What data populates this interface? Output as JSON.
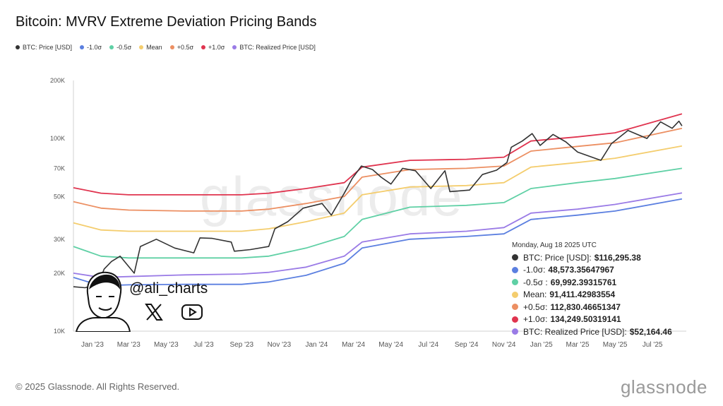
{
  "header": {
    "title": "Bitcoin: MVRV Extreme Deviation Pricing Bands"
  },
  "legend": [
    {
      "label": "BTC: Price [USD]",
      "color": "#333333"
    },
    {
      "label": "-1.0σ",
      "color": "#5b7fe0"
    },
    {
      "label": "-0.5σ",
      "color": "#5fd0a5"
    },
    {
      "label": "Mean",
      "color": "#f4cd6e"
    },
    {
      "label": "+0.5σ",
      "color": "#ec8f62"
    },
    {
      "label": "+1.0σ",
      "color": "#e0344f"
    },
    {
      "label": "BTC: Realized Price [USD]",
      "color": "#9a7be6"
    }
  ],
  "tooltip": {
    "date": "Monday, Aug 18 2025 UTC",
    "rows": [
      {
        "label": "BTC: Price [USD]:",
        "value": "$116,295.38",
        "color": "#333333"
      },
      {
        "label": "-1.0σ:",
        "value": "48,573.35647967",
        "color": "#5b7fe0"
      },
      {
        "label": "-0.5σ :",
        "value": "69,992.39315761",
        "color": "#5fd0a5"
      },
      {
        "label": "Mean:",
        "value": "91,411.42983554",
        "color": "#f4cd6e"
      },
      {
        "label": "+0.5σ:",
        "value": "112,830.46651347",
        "color": "#ec8f62"
      },
      {
        "label": "+1.0σ:",
        "value": "134,249.50319141",
        "color": "#e0344f"
      },
      {
        "label": "BTC: Realized Price [USD]:",
        "value": "$52,164.46",
        "color": "#9a7be6"
      }
    ]
  },
  "watermark": {
    "handle": "@ali_charts",
    "background_text": "glassnode"
  },
  "footer": {
    "copyright": "© 2025 Glassnode. All Rights Reserved.",
    "brand": "glassnode"
  },
  "chart_data": {
    "type": "line",
    "title": "Bitcoin: MVRV Extreme Deviation Pricing Bands",
    "y_scale": "log",
    "ylim": [
      10000,
      200000
    ],
    "xlim": [
      "2022-12-01",
      "2025-08-25"
    ],
    "y_ticks": [
      {
        "value": 10000,
        "label": "10K"
      },
      {
        "value": 20000,
        "label": "20K"
      },
      {
        "value": 30000,
        "label": "30K"
      },
      {
        "value": 50000,
        "label": "50K"
      },
      {
        "value": 70000,
        "label": "70K"
      },
      {
        "value": 100000,
        "label": "100K"
      },
      {
        "value": 200000,
        "label": "200K"
      }
    ],
    "x_ticks": [
      {
        "date": "2023-01-01",
        "label": "Jan '23"
      },
      {
        "date": "2023-03-01",
        "label": "Mar '23"
      },
      {
        "date": "2023-05-01",
        "label": "May '23"
      },
      {
        "date": "2023-07-01",
        "label": "Jul '23"
      },
      {
        "date": "2023-09-01",
        "label": "Sep '23"
      },
      {
        "date": "2023-11-01",
        "label": "Nov '23"
      },
      {
        "date": "2024-01-01",
        "label": "Jan '24"
      },
      {
        "date": "2024-03-01",
        "label": "Mar '24"
      },
      {
        "date": "2024-05-01",
        "label": "May '24"
      },
      {
        "date": "2024-07-01",
        "label": "Jul '24"
      },
      {
        "date": "2024-09-01",
        "label": "Sep '24"
      },
      {
        "date": "2024-11-01",
        "label": "Nov '24"
      },
      {
        "date": "2025-01-01",
        "label": "Jan '25"
      },
      {
        "date": "2025-03-01",
        "label": "Mar '25"
      },
      {
        "date": "2025-05-01",
        "label": "May '25"
      },
      {
        "date": "2025-07-01",
        "label": "Jul '25"
      }
    ],
    "grid": false,
    "series": [
      {
        "name": "+1.0σ",
        "color": "#e0344f",
        "points": [
          [
            "2022-12-01",
            55500
          ],
          [
            "2023-01-15",
            52000
          ],
          [
            "2023-03-01",
            51000
          ],
          [
            "2023-06-01",
            51000
          ],
          [
            "2023-09-01",
            51000
          ],
          [
            "2023-10-15",
            52000
          ],
          [
            "2023-12-15",
            55000
          ],
          [
            "2024-02-15",
            59000
          ],
          [
            "2024-03-15",
            71000
          ],
          [
            "2024-06-01",
            77000
          ],
          [
            "2024-09-01",
            78000
          ],
          [
            "2024-11-01",
            80000
          ],
          [
            "2024-12-15",
            97000
          ],
          [
            "2025-03-01",
            102000
          ],
          [
            "2025-05-01",
            107000
          ],
          [
            "2025-08-18",
            134249
          ]
        ]
      },
      {
        "name": "+0.5σ",
        "color": "#ec8f62",
        "points": [
          [
            "2022-12-01",
            47000
          ],
          [
            "2023-01-15",
            43500
          ],
          [
            "2023-03-01",
            42500
          ],
          [
            "2023-06-01",
            42000
          ],
          [
            "2023-09-01",
            42000
          ],
          [
            "2023-10-15",
            43000
          ],
          [
            "2023-12-15",
            46000
          ],
          [
            "2024-02-15",
            50000
          ],
          [
            "2024-03-15",
            63000
          ],
          [
            "2024-06-01",
            69000
          ],
          [
            "2024-09-01",
            70000
          ],
          [
            "2024-11-01",
            72000
          ],
          [
            "2024-12-15",
            86000
          ],
          [
            "2025-03-01",
            91000
          ],
          [
            "2025-05-01",
            95000
          ],
          [
            "2025-08-18",
            112830
          ]
        ]
      },
      {
        "name": "Mean",
        "color": "#f4cd6e",
        "points": [
          [
            "2022-12-01",
            36500
          ],
          [
            "2023-01-15",
            33500
          ],
          [
            "2023-03-01",
            33000
          ],
          [
            "2023-06-01",
            33000
          ],
          [
            "2023-09-01",
            33000
          ],
          [
            "2023-10-15",
            34000
          ],
          [
            "2023-12-15",
            37000
          ],
          [
            "2024-02-15",
            41000
          ],
          [
            "2024-03-15",
            51000
          ],
          [
            "2024-06-01",
            56000
          ],
          [
            "2024-09-01",
            57000
          ],
          [
            "2024-11-01",
            59000
          ],
          [
            "2024-12-15",
            71000
          ],
          [
            "2025-03-01",
            75000
          ],
          [
            "2025-05-01",
            79000
          ],
          [
            "2025-08-18",
            91411
          ]
        ]
      },
      {
        "name": "-0.5σ",
        "color": "#5fd0a5",
        "points": [
          [
            "2022-12-01",
            27500
          ],
          [
            "2023-01-15",
            24500
          ],
          [
            "2023-03-01",
            24000
          ],
          [
            "2023-06-01",
            24000
          ],
          [
            "2023-09-01",
            24000
          ],
          [
            "2023-10-15",
            24500
          ],
          [
            "2023-12-15",
            27000
          ],
          [
            "2024-02-15",
            31000
          ],
          [
            "2024-03-15",
            38000
          ],
          [
            "2024-06-01",
            44000
          ],
          [
            "2024-09-01",
            45000
          ],
          [
            "2024-11-01",
            46500
          ],
          [
            "2024-12-15",
            55000
          ],
          [
            "2025-03-01",
            59000
          ],
          [
            "2025-05-01",
            62000
          ],
          [
            "2025-08-18",
            69992
          ]
        ]
      },
      {
        "name": "BTC: Realized Price [USD]",
        "color": "#9a7be6",
        "points": [
          [
            "2022-12-01",
            20000
          ],
          [
            "2023-01-15",
            19000
          ],
          [
            "2023-03-01",
            19200
          ],
          [
            "2023-06-01",
            19600
          ],
          [
            "2023-09-01",
            19800
          ],
          [
            "2023-10-15",
            20200
          ],
          [
            "2023-12-15",
            21500
          ],
          [
            "2024-02-15",
            24500
          ],
          [
            "2024-03-15",
            29000
          ],
          [
            "2024-06-01",
            32000
          ],
          [
            "2024-09-01",
            33000
          ],
          [
            "2024-11-01",
            34500
          ],
          [
            "2024-12-15",
            41000
          ],
          [
            "2025-03-01",
            43000
          ],
          [
            "2025-05-01",
            45500
          ],
          [
            "2025-08-18",
            52164
          ]
        ]
      },
      {
        "name": "-1.0σ",
        "color": "#5b7fe0",
        "points": [
          [
            "2022-12-01",
            19000
          ],
          [
            "2023-01-15",
            17200
          ],
          [
            "2023-03-01",
            17400
          ],
          [
            "2023-06-01",
            17500
          ],
          [
            "2023-09-01",
            17500
          ],
          [
            "2023-10-15",
            18000
          ],
          [
            "2023-12-15",
            19500
          ],
          [
            "2024-02-15",
            22500
          ],
          [
            "2024-03-15",
            27000
          ],
          [
            "2024-06-01",
            30000
          ],
          [
            "2024-09-01",
            31000
          ],
          [
            "2024-11-01",
            32000
          ],
          [
            "2024-12-15",
            38000
          ],
          [
            "2025-03-01",
            40000
          ],
          [
            "2025-05-01",
            42000
          ],
          [
            "2025-08-18",
            48573
          ]
        ]
      },
      {
        "name": "BTC: Price [USD]",
        "color": "#333333",
        "points": [
          [
            "2022-12-01",
            17000
          ],
          [
            "2022-12-20",
            16800
          ],
          [
            "2023-01-10",
            17500
          ],
          [
            "2023-01-20",
            21000
          ],
          [
            "2023-02-01",
            23000
          ],
          [
            "2023-02-15",
            24500
          ],
          [
            "2023-03-10",
            20000
          ],
          [
            "2023-03-20",
            27500
          ],
          [
            "2023-04-15",
            30000
          ],
          [
            "2023-05-15",
            27000
          ],
          [
            "2023-06-15",
            25500
          ],
          [
            "2023-06-25",
            30500
          ],
          [
            "2023-07-15",
            30300
          ],
          [
            "2023-08-15",
            29000
          ],
          [
            "2023-08-20",
            26000
          ],
          [
            "2023-09-15",
            26500
          ],
          [
            "2023-10-15",
            27500
          ],
          [
            "2023-10-25",
            34000
          ],
          [
            "2023-11-15",
            37000
          ],
          [
            "2023-12-10",
            43500
          ],
          [
            "2024-01-10",
            46000
          ],
          [
            "2024-01-25",
            40000
          ],
          [
            "2024-02-15",
            52000
          ],
          [
            "2024-02-28",
            62000
          ],
          [
            "2024-03-14",
            72000
          ],
          [
            "2024-04-01",
            69000
          ],
          [
            "2024-04-15",
            63000
          ],
          [
            "2024-05-01",
            58000
          ],
          [
            "2024-05-20",
            70000
          ],
          [
            "2024-06-10",
            68000
          ],
          [
            "2024-07-05",
            55000
          ],
          [
            "2024-07-28",
            68000
          ],
          [
            "2024-08-05",
            53000
          ],
          [
            "2024-09-06",
            54000
          ],
          [
            "2024-09-27",
            65000
          ],
          [
            "2024-10-20",
            68500
          ],
          [
            "2024-11-06",
            75000
          ],
          [
            "2024-11-13",
            90000
          ],
          [
            "2024-12-01",
            97000
          ],
          [
            "2024-12-17",
            106000
          ],
          [
            "2024-12-30",
            92000
          ],
          [
            "2025-01-20",
            105000
          ],
          [
            "2025-02-10",
            96000
          ],
          [
            "2025-03-01",
            85000
          ],
          [
            "2025-04-08",
            77000
          ],
          [
            "2025-04-25",
            94000
          ],
          [
            "2025-05-22",
            110000
          ],
          [
            "2025-06-22",
            100000
          ],
          [
            "2025-07-14",
            122000
          ],
          [
            "2025-08-02",
            113000
          ],
          [
            "2025-08-13",
            123000
          ],
          [
            "2025-08-18",
            116295
          ]
        ]
      }
    ]
  }
}
